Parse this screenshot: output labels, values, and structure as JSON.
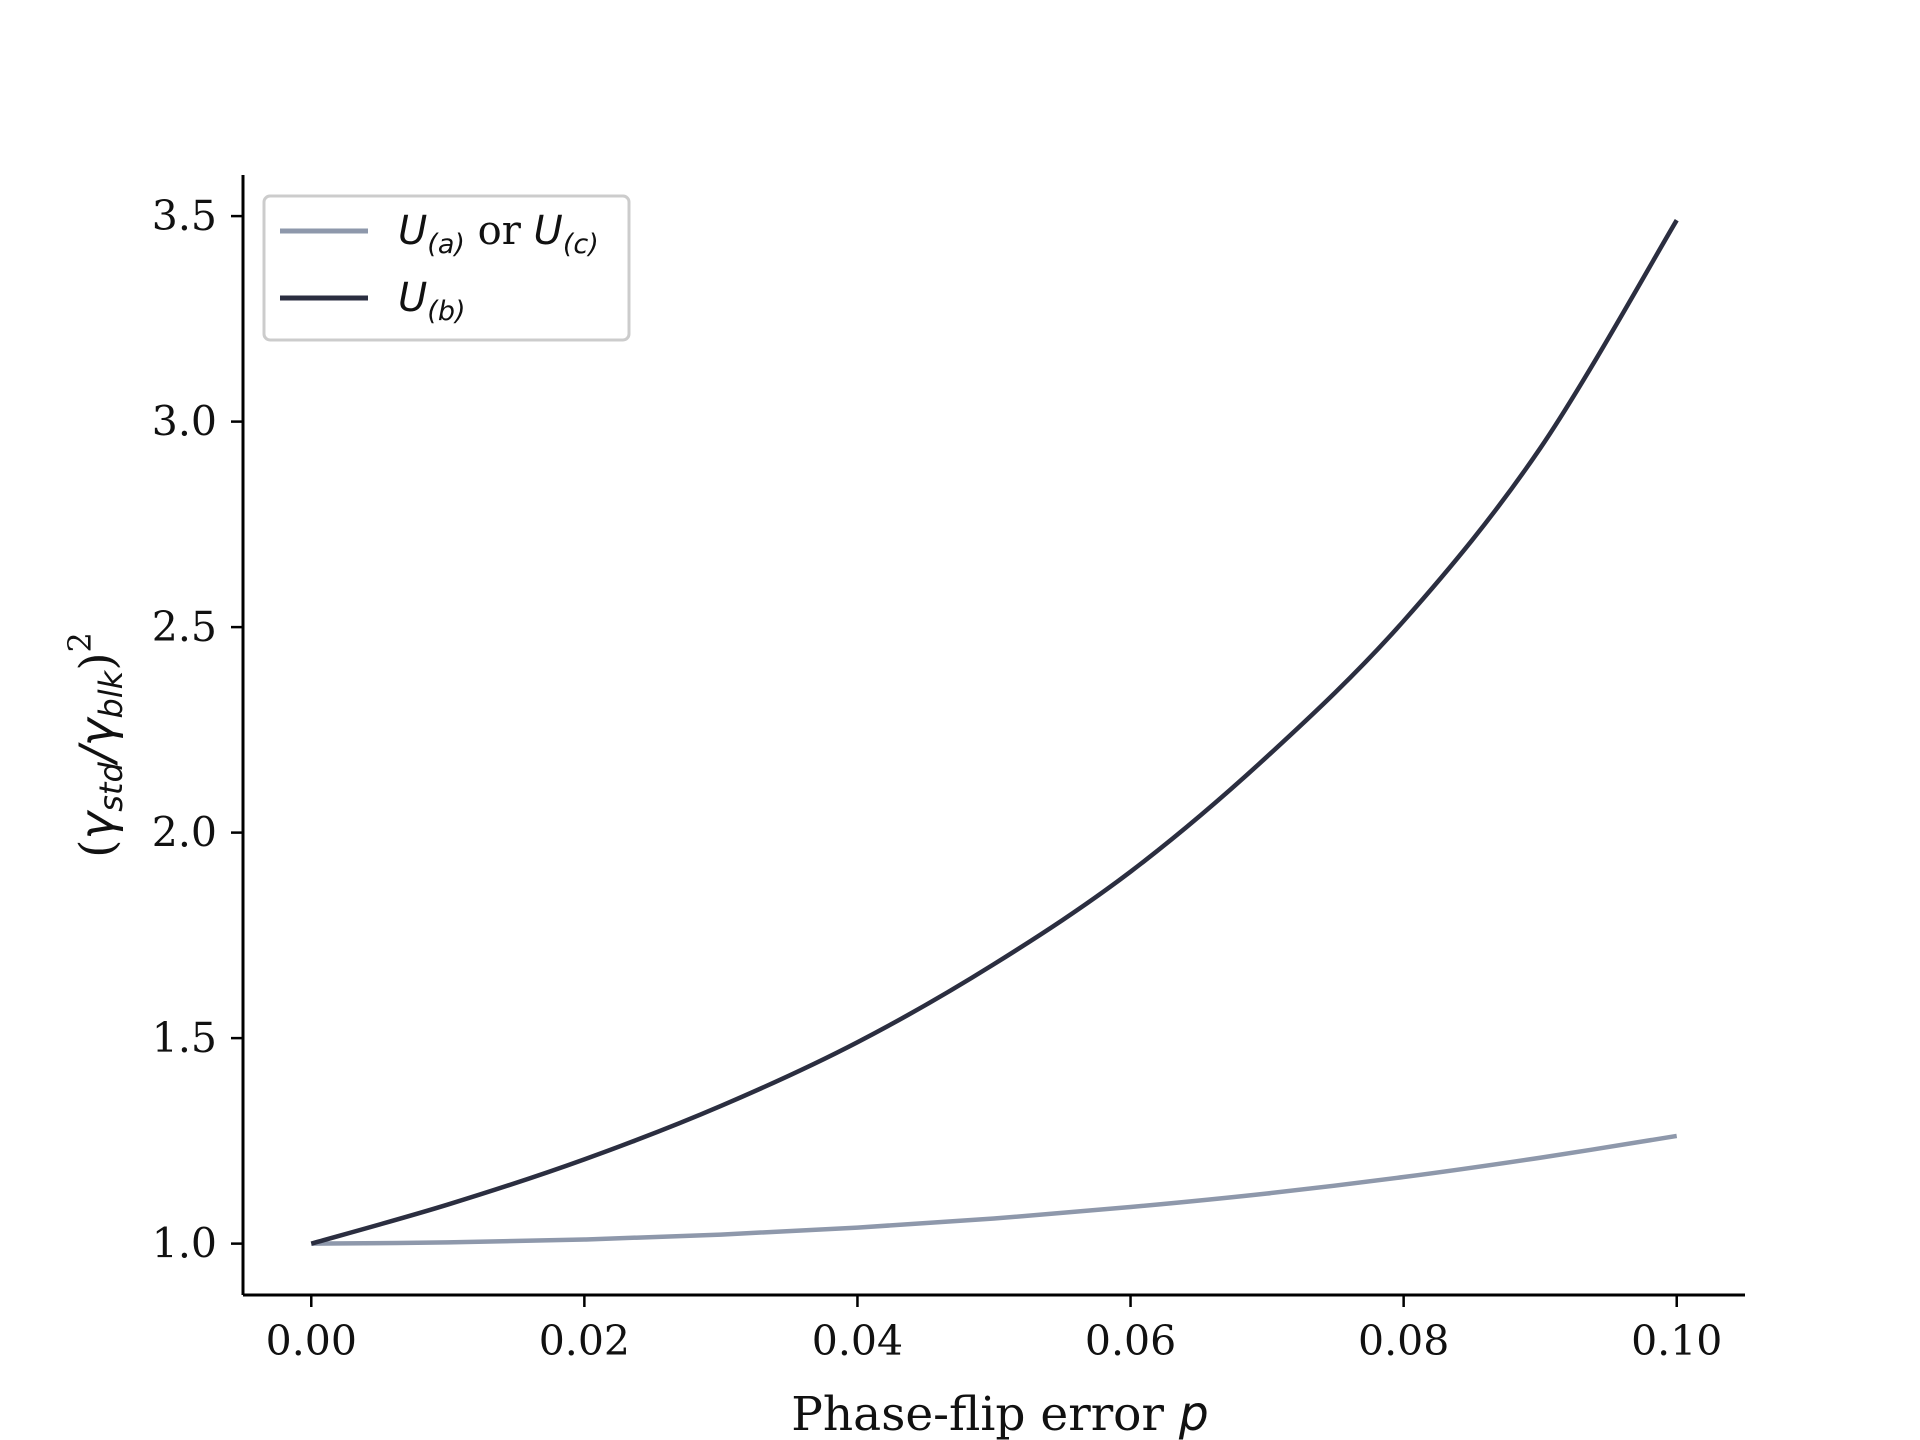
{
  "chart_data": {
    "type": "line",
    "xlabel": {
      "prefix": "Phase-flip error ",
      "var": "p"
    },
    "ylabel": {
      "open": "(",
      "g1": "γ",
      "s1": "std",
      "slash": "/",
      "g2": "γ",
      "s2": "blk",
      "close": ")",
      "exp": "2"
    },
    "xlim": [
      -0.005,
      0.105
    ],
    "ylim": [
      0.875,
      3.6
    ],
    "xticks": [
      0.0,
      0.02,
      0.04,
      0.06,
      0.08,
      0.1
    ],
    "xtick_labels": [
      "0.00",
      "0.02",
      "0.04",
      "0.06",
      "0.08",
      "0.10"
    ],
    "yticks": [
      1.0,
      1.5,
      2.0,
      2.5,
      3.0,
      3.5
    ],
    "ytick_labels": [
      "1.0",
      "1.5",
      "2.0",
      "2.5",
      "3.0",
      "3.5"
    ],
    "grid": false,
    "legend_position": "top-left",
    "x": [
      0.0,
      0.01,
      0.02,
      0.03,
      0.04,
      0.05,
      0.06,
      0.07,
      0.08,
      0.09,
      0.1
    ],
    "series": [
      {
        "name": "U_(a) or U_(c)",
        "legend": {
          "u1": "U",
          "s1": "(a)",
          "mid": " or ",
          "u2": "U",
          "s2": "(c)"
        },
        "color": "#8e98ab",
        "values": [
          1.0,
          1.003,
          1.01,
          1.022,
          1.039,
          1.061,
          1.089,
          1.122,
          1.162,
          1.209,
          1.262
        ]
      },
      {
        "name": "U_(b)",
        "legend": {
          "u1": "U",
          "s1": "(b)"
        },
        "color": "#2b2e40",
        "values": [
          1.0,
          1.095,
          1.205,
          1.335,
          1.49,
          1.68,
          1.905,
          2.185,
          2.515,
          2.935,
          3.49
        ]
      }
    ]
  }
}
